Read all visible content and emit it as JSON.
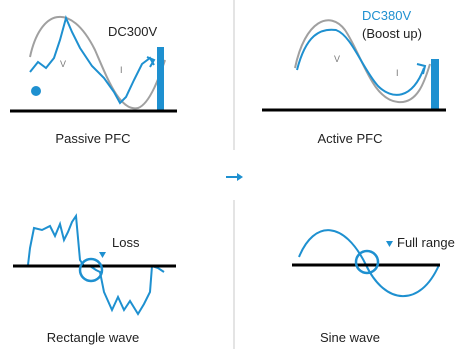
{
  "colors": {
    "accent": "#1e90d0",
    "axis": "#000000",
    "reference": "#a0a0a0",
    "divider": "#c8c8c8"
  },
  "panels": {
    "passive_pfc": {
      "caption": "Passive PFC",
      "voltage": "DC300V",
      "v_label": "V",
      "i_label": "I"
    },
    "active_pfc": {
      "caption": "Active PFC",
      "voltage": "DC380V",
      "note": "(Boost up)",
      "v_label": "V",
      "i_label": "I"
    },
    "rectangle_wave": {
      "caption": "Rectangle wave",
      "note": "Loss"
    },
    "sine_wave": {
      "caption": "Sine wave",
      "note": "Full range"
    }
  },
  "icons": {
    "center": "arrow-right-icon",
    "marker": "triangle-down-icon"
  }
}
